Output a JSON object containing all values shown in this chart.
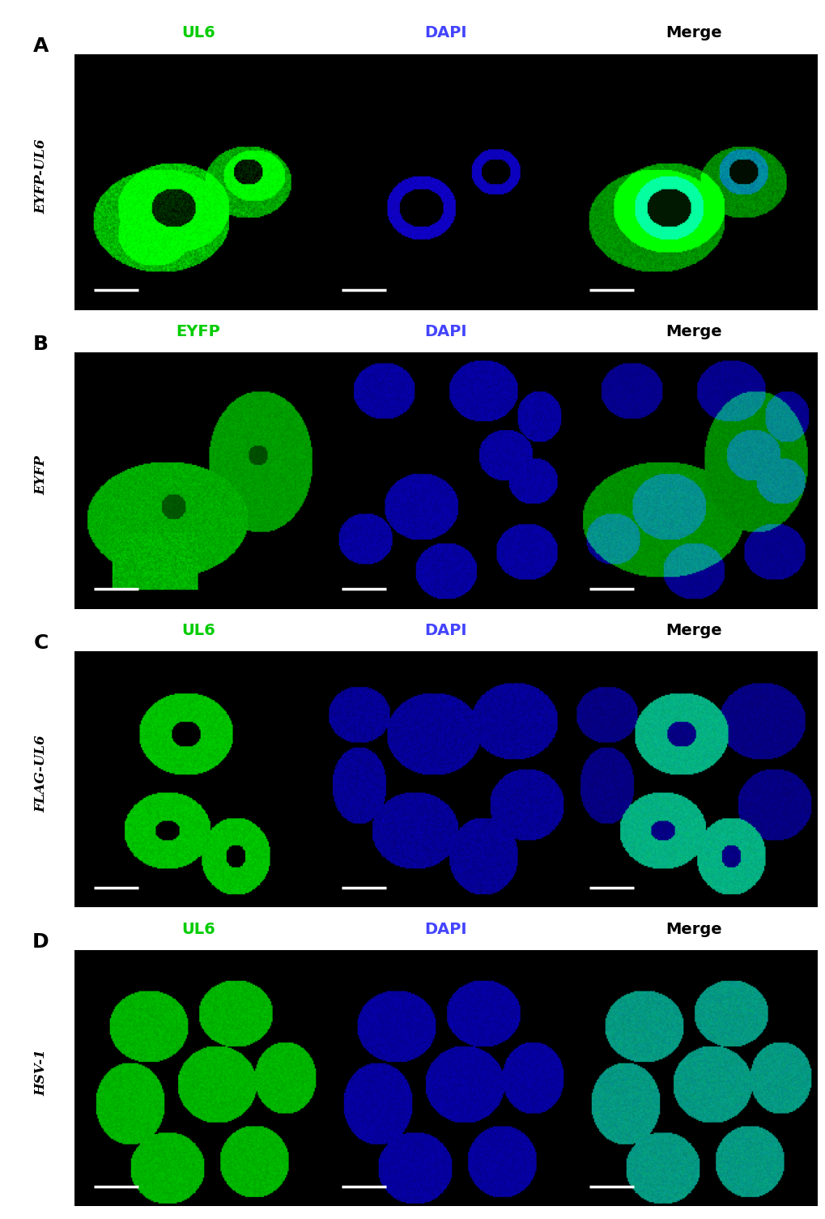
{
  "rows": [
    "A",
    "B",
    "C",
    "D"
  ],
  "row_labels": [
    "EYFP-UL6",
    "EYFP",
    "FLAG-UL6",
    "HSV-1"
  ],
  "row_labels_display": [
    "EYFP",
    "EYFP",
    "FLAG",
    "HSV-1"
  ],
  "col_labels": [
    [
      "UL6",
      "DAPI",
      "Merge"
    ],
    [
      "EYFP",
      "DAPI",
      "Merge"
    ],
    [
      "UL6",
      "DAPI",
      "Merge"
    ],
    [
      "UL6",
      "DAPI",
      "Merge"
    ]
  ],
  "col_label_colors": [
    [
      "#00cc00",
      "#4444ff",
      "#000000"
    ],
    [
      "#00cc00",
      "#4444ff",
      "#000000"
    ],
    [
      "#00cc00",
      "#4444ff",
      "#000000"
    ],
    [
      "#00cc00",
      "#4444ff",
      "#000000"
    ]
  ],
  "background_color": "#000000",
  "figure_bg": "#ffffff",
  "label_fontsize": 14,
  "row_label_fontsize": 13,
  "panel_label_fontsize": 18,
  "scale_bar_color": "#ffffff",
  "scale_bar_lw": 3
}
